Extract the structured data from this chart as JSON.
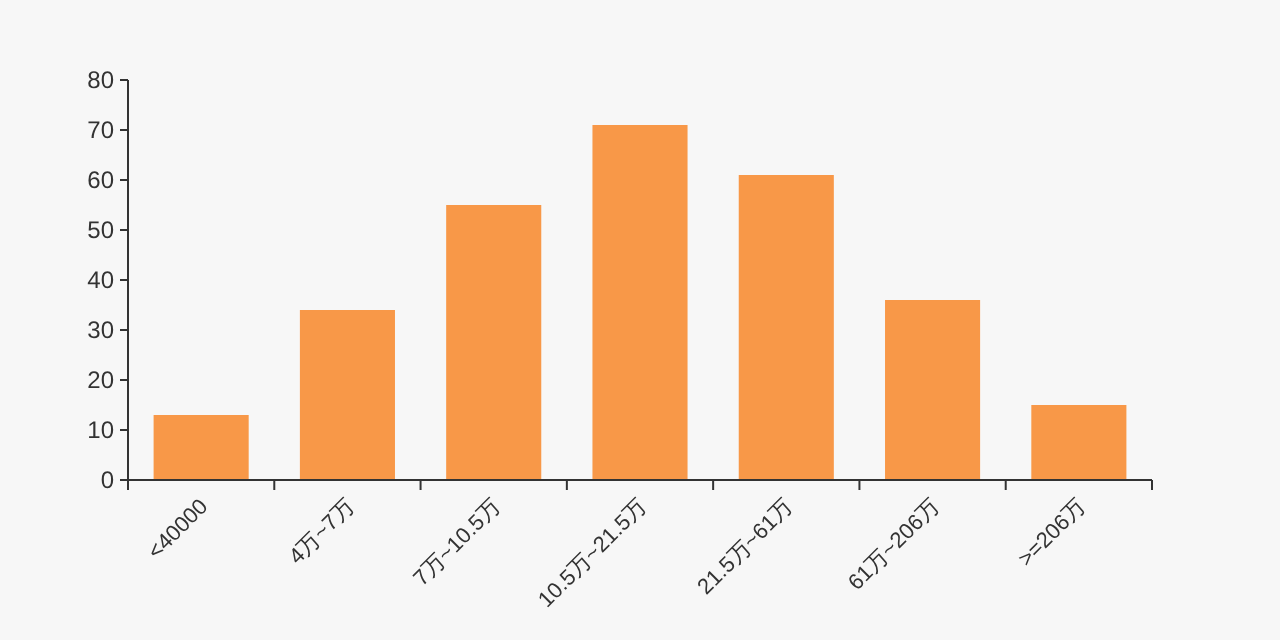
{
  "chart_data": {
    "type": "bar",
    "categories": [
      "<40000",
      "4万~7万",
      "7万~10.5万",
      "10.5万~21.5万",
      "21.5万~61万",
      "61万~206万",
      ">=206万"
    ],
    "values": [
      13,
      34,
      55,
      71,
      61,
      36,
      15
    ],
    "color": "#f89848",
    "ylim": [
      0,
      80
    ],
    "yticks": [
      0,
      10,
      20,
      30,
      40,
      50,
      60,
      70,
      80
    ],
    "grid": false
  }
}
